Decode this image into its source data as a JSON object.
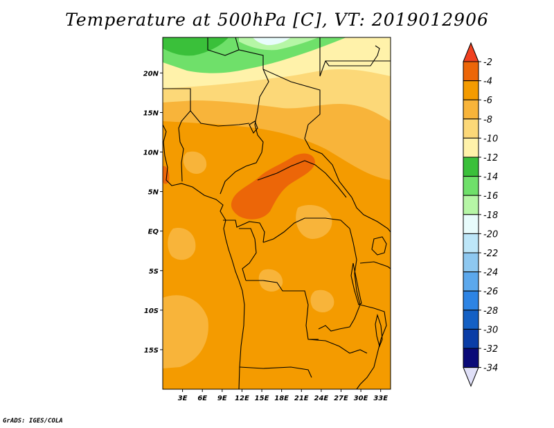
{
  "title": "Temperature at 500hPa [C], VT: 2019012906",
  "credit": "GrADS: IGES/COLA",
  "map": {
    "lon_range": [
      0,
      34.5
    ],
    "lat_range": [
      -20,
      24.5
    ],
    "y_ticks": [
      "20N",
      "15N",
      "10N",
      "5N",
      "EQ",
      "5S",
      "10S",
      "15S"
    ],
    "x_ticks": [
      "3E",
      "6E",
      "9E",
      "12E",
      "15E",
      "18E",
      "21E",
      "24E",
      "27E",
      "30E",
      "33E"
    ]
  },
  "colorbar": {
    "labels": [
      "-2",
      "-4",
      "-6",
      "-8",
      "-10",
      "-12",
      "-14",
      "-16",
      "-18",
      "-20",
      "-22",
      "-24",
      "-26",
      "-28",
      "-30",
      "-32",
      "-34"
    ],
    "colors": [
      "#f04020",
      "#ec6608",
      "#f49b00",
      "#f8b43a",
      "#fcd878",
      "#fff2aa",
      "#3ac03a",
      "#6fe06a",
      "#b6f6a6",
      "#e8fcfc",
      "#bde6f8",
      "#8ec8f0",
      "#5ca8ec",
      "#2d84e4",
      "#1460c4",
      "#0a3da6",
      "#0a0a78",
      "#e0e0f8"
    ]
  }
}
